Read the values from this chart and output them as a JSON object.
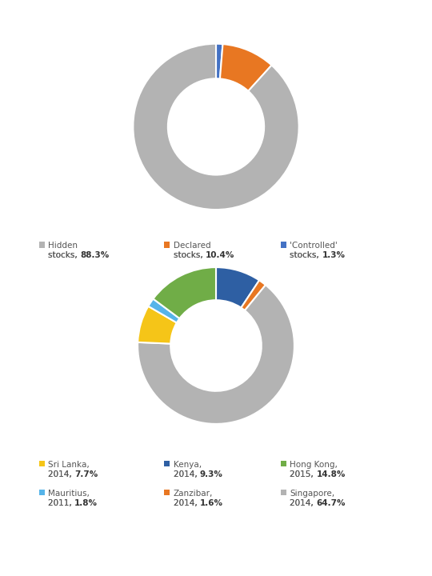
{
  "chart1": {
    "labels": [
      "Hidden stocks",
      "Declared stocks",
      "'Controlled' stocks"
    ],
    "values": [
      88.3,
      10.4,
      1.3
    ],
    "colors": [
      "#b3b3b3",
      "#e87722",
      "#4472c4"
    ],
    "legend_items": [
      {
        "normal": "Hidden\nstocks, ",
        "bold": "88.3%",
        "color": "#b3b3b3"
      },
      {
        "normal": "Declared\nstocks, ",
        "bold": "10.4%",
        "color": "#e87722"
      },
      {
        "normal": "'Controlled'\nstocks, ",
        "bold": "1.3%",
        "color": "#4472c4"
      }
    ]
  },
  "chart2": {
    "order": [
      1,
      4,
      5,
      0,
      3,
      2
    ],
    "labels": [
      "Sri Lanka, 2014",
      "Kenya, 2014",
      "Hong Kong, 2015",
      "Mauritius, 2011",
      "Zanzibar, 2014",
      "Singapore, 2014"
    ],
    "values": [
      7.7,
      9.3,
      14.8,
      1.8,
      1.6,
      64.7
    ],
    "colors": [
      "#f5c518",
      "#2e5fa3",
      "#70ad47",
      "#56b4e9",
      "#e87722",
      "#b3b3b3"
    ],
    "legend_items": [
      {
        "normal": "Sri Lanka,\n2014, ",
        "bold": "7.7%",
        "color": "#f5c518"
      },
      {
        "normal": "Kenya,\n2014, ",
        "bold": "9.3%",
        "color": "#2e5fa3"
      },
      {
        "normal": "Hong Kong,\n2015, ",
        "bold": "14.8%",
        "color": "#70ad47"
      },
      {
        "normal": "Mauritius,\n2011, ",
        "bold": "1.8%",
        "color": "#56b4e9"
      },
      {
        "normal": "Zanzibar,\n2014, ",
        "bold": "1.6%",
        "color": "#e87722"
      },
      {
        "normal": "Singapore,\n2014, ",
        "bold": "64.7%",
        "color": "#b3b3b3"
      }
    ]
  },
  "bg_color": "#ffffff",
  "wedge_edge_color": "#ffffff",
  "donut_width": 0.42
}
